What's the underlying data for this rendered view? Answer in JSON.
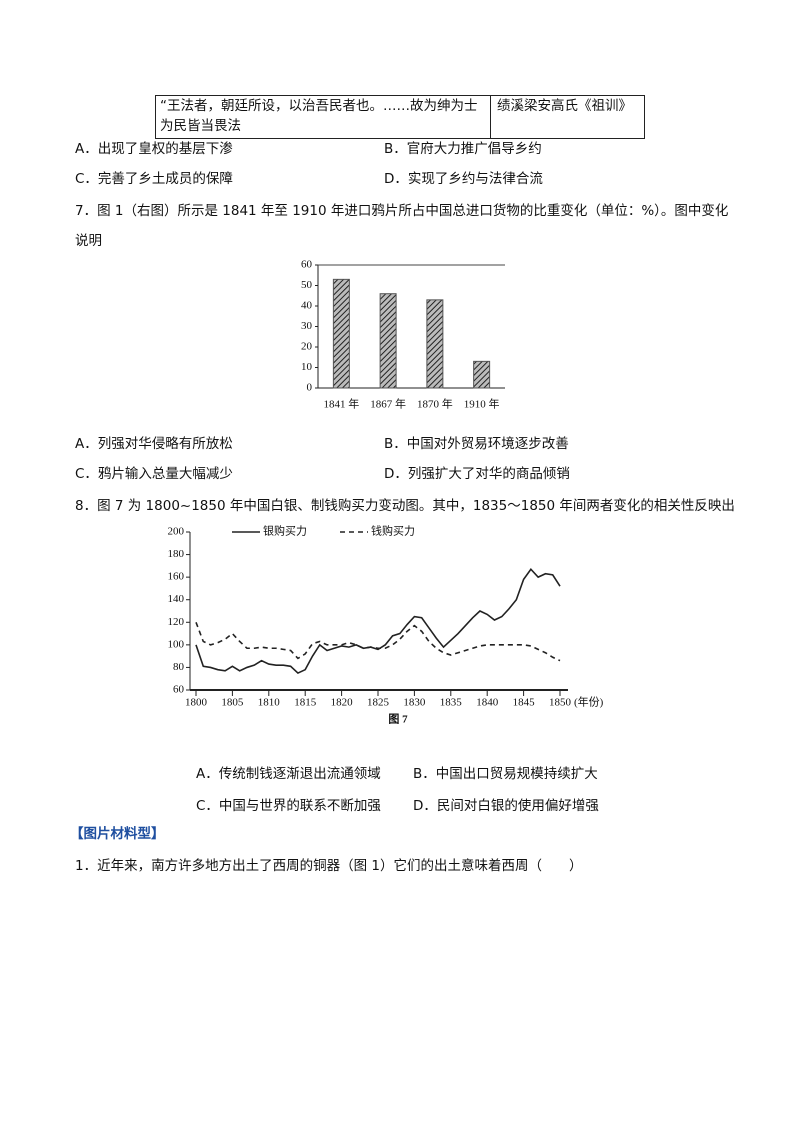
{
  "table": {
    "rows": [
      [
        "“王法者，朝廷所设，以治吾民者也。……故为绅为士为民皆当畏法",
        "绩溪梁安高氏《祖训》"
      ]
    ]
  },
  "options_6": [
    "A．出现了皇权的基层下渗",
    "B．官府大力推广倡导乡约",
    "C．完善了乡土成员的保障",
    "D．实现了乡约与法律合流"
  ],
  "question_7": "7．图 1（右图）所示是 1841 年至 1910 年进口鸦片所占中国总进口货物的比重变化（单位：%）。图中变化说明",
  "options_7": [
    "A．列强对华侵略有所放松",
    "B．中国对外贸易环境逐步改善",
    "C．鸦片输入总量大幅减少",
    "D．列强扩大了对华的商品倾销"
  ],
  "question_8": "8．图 7 为 1800~1850 年中国白银、制钱购买力变动图。其中，1835～1850 年间两者变化的相关性反映出",
  "options_8": [
    "A．传统制钱逐渐退出流通领域",
    "B．中国出口贸易规模持续扩大",
    "C．中国与世界的联系不断加强",
    "D．民间对白银的使用偏好增强"
  ],
  "section": "【图片材料型】",
  "question_1": "1．近年来，南方许多地方出土了西周的铜器（图 1）它们的出土意味着西周（　　）",
  "chart_data": [
    {
      "type": "bar",
      "categories": [
        "1841 年",
        "1867 年",
        "1870 年",
        "1910 年"
      ],
      "values": [
        53,
        46,
        43,
        13
      ],
      "color": "#555555",
      "ylim": [
        0,
        60
      ],
      "yticks": [
        0,
        10,
        20,
        30,
        40,
        50,
        60
      ],
      "grid": false
    },
    {
      "type": "line",
      "caption": "图 7",
      "x_label": "(年份)",
      "x": [
        1800,
        1801,
        1802,
        1803,
        1804,
        1805,
        1806,
        1807,
        1808,
        1809,
        1810,
        1811,
        1812,
        1813,
        1814,
        1815,
        1816,
        1817,
        1818,
        1819,
        1820,
        1821,
        1822,
        1823,
        1824,
        1825,
        1826,
        1827,
        1828,
        1829,
        1830,
        1831,
        1832,
        1833,
        1834,
        1835,
        1836,
        1837,
        1838,
        1839,
        1840,
        1841,
        1842,
        1843,
        1844,
        1845,
        1846,
        1847,
        1848,
        1849,
        1850
      ],
      "series": [
        {
          "name": "银购买力",
          "color": "#222222",
          "line_style": "solid",
          "values": [
            100,
            81,
            80,
            78,
            77,
            81,
            77,
            80,
            82,
            86,
            83,
            82,
            82,
            81,
            75,
            78,
            90,
            100,
            95,
            97,
            99,
            98,
            100,
            97,
            98,
            96,
            100,
            108,
            110,
            118,
            125,
            124,
            115,
            106,
            98,
            104,
            110,
            117,
            124,
            130,
            127,
            122,
            125,
            132,
            140,
            158,
            167,
            160,
            163,
            162,
            152
          ]
        },
        {
          "name": "钱购买力",
          "color": "#222222",
          "line_style": "dashed",
          "values": [
            120,
            103,
            100,
            102,
            105,
            110,
            103,
            97,
            97,
            98,
            97,
            97,
            96,
            95,
            88,
            92,
            101,
            103,
            100,
            100,
            100,
            102,
            100,
            97,
            98,
            97,
            97,
            100,
            105,
            112,
            117,
            112,
            103,
            97,
            93,
            91,
            93,
            95,
            97,
            99,
            100,
            100,
            100,
            100,
            100,
            100,
            99,
            96,
            93,
            89,
            86
          ]
        }
      ],
      "xlim": [
        1800,
        1850
      ],
      "xticks": [
        1800,
        1805,
        1810,
        1815,
        1820,
        1825,
        1830,
        1835,
        1840,
        1845,
        1850
      ],
      "ylim": [
        60,
        200
      ],
      "yticks": [
        60,
        80,
        100,
        120,
        140,
        160,
        180,
        200
      ]
    }
  ]
}
